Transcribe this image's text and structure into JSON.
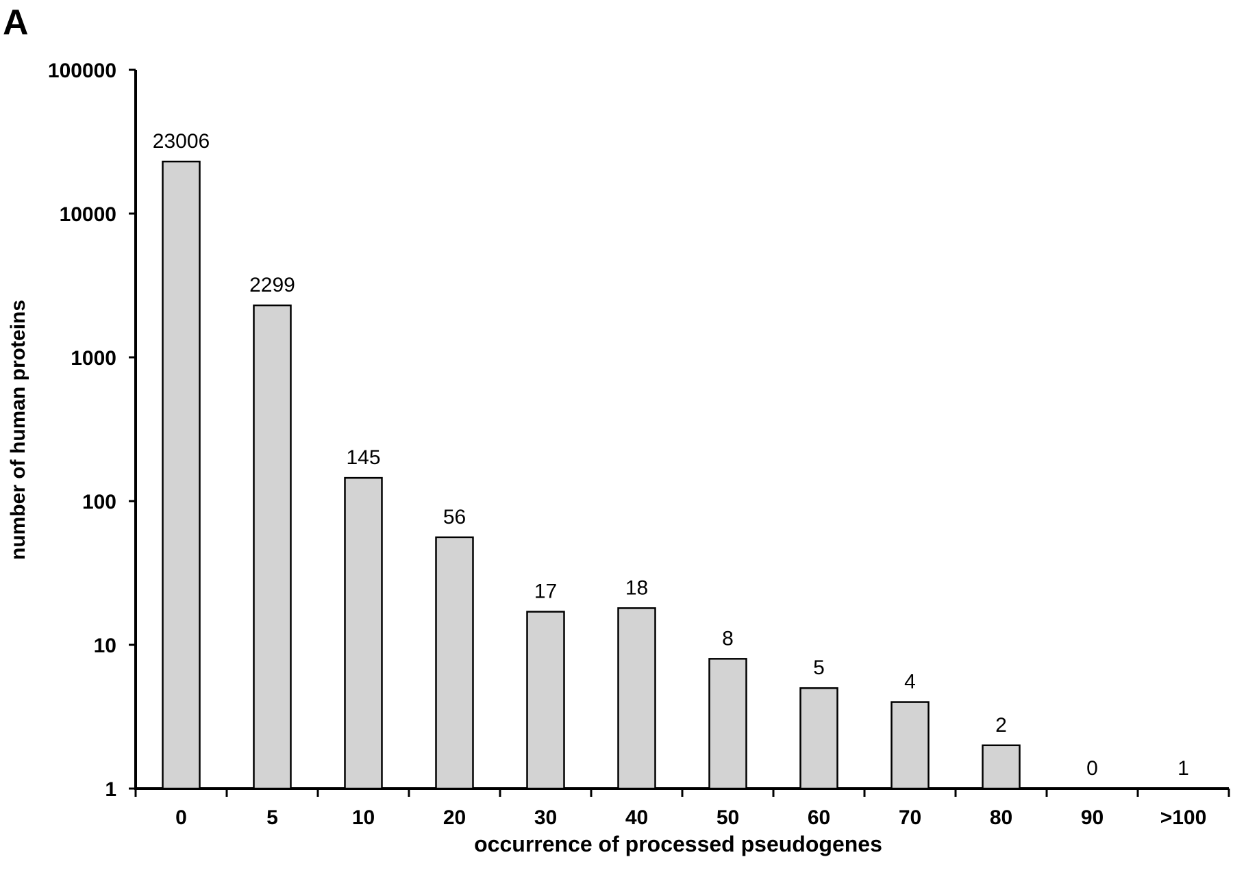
{
  "panel_label": "A",
  "chart_data": {
    "type": "bar",
    "title": "",
    "xlabel": "occurrence of processed pseudogenes",
    "ylabel": "number of human proteins",
    "yscale": "log",
    "ylim": [
      1,
      100000
    ],
    "yticks": [
      1,
      10,
      100,
      1000,
      10000,
      100000
    ],
    "ytick_labels": [
      "1",
      "10",
      "100",
      "1000",
      "10000",
      "100000"
    ],
    "categories": [
      "0",
      "5",
      "10",
      "20",
      "30",
      "40",
      "50",
      "60",
      "70",
      "80",
      "90",
      ">100"
    ],
    "values": [
      23006,
      2299,
      145,
      56,
      17,
      18,
      8,
      5,
      4,
      2,
      0,
      1
    ],
    "data_labels": [
      "23006",
      "2299",
      "145",
      "56",
      "17",
      "18",
      "8",
      "5",
      "4",
      "2",
      "0",
      "1"
    ],
    "bar_color": "#d3d3d3",
    "grid": false,
    "legend": "none"
  }
}
